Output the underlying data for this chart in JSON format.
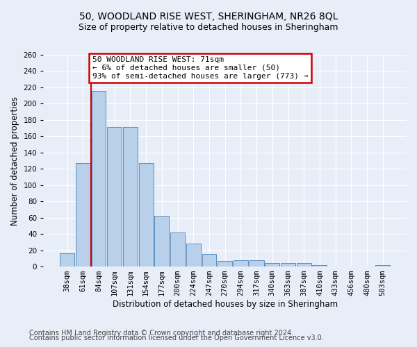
{
  "title": "50, WOODLAND RISE WEST, SHERINGHAM, NR26 8QL",
  "subtitle": "Size of property relative to detached houses in Sheringham",
  "xlabel": "Distribution of detached houses by size in Sheringham",
  "ylabel": "Number of detached properties",
  "categories": [
    "38sqm",
    "61sqm",
    "84sqm",
    "107sqm",
    "131sqm",
    "154sqm",
    "177sqm",
    "200sqm",
    "224sqm",
    "247sqm",
    "270sqm",
    "294sqm",
    "317sqm",
    "340sqm",
    "363sqm",
    "387sqm",
    "410sqm",
    "433sqm",
    "456sqm",
    "480sqm",
    "503sqm"
  ],
  "values": [
    16,
    127,
    216,
    171,
    171,
    127,
    62,
    42,
    28,
    15,
    7,
    8,
    8,
    4,
    4,
    4,
    2,
    0,
    0,
    0,
    2
  ],
  "bar_color": "#b8d0ea",
  "bar_edge_color": "#5a8fc0",
  "red_line_x": 1.5,
  "annotation_text": "50 WOODLAND RISE WEST: 71sqm\n← 6% of detached houses are smaller (50)\n93% of semi-detached houses are larger (773) →",
  "annotation_box_color": "#ffffff",
  "annotation_box_edge": "#cc0000",
  "ylim": [
    0,
    260
  ],
  "yticks": [
    0,
    20,
    40,
    60,
    80,
    100,
    120,
    140,
    160,
    180,
    200,
    220,
    240,
    260
  ],
  "footer_line1": "Contains HM Land Registry data © Crown copyright and database right 2024.",
  "footer_line2": "Contains public sector information licensed under the Open Government Licence v3.0.",
  "background_color": "#e8eef8",
  "plot_background_color": "#e8eef8",
  "title_fontsize": 10,
  "subtitle_fontsize": 9,
  "axis_label_fontsize": 8.5,
  "tick_fontsize": 7.5,
  "annotation_fontsize": 8,
  "footer_fontsize": 7
}
